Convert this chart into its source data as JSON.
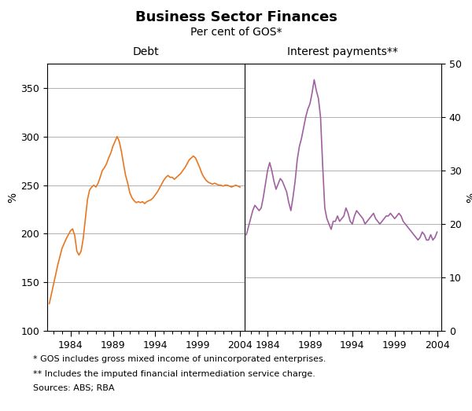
{
  "title": "Business Sector Finances",
  "subtitle": "Per cent of GOS*",
  "left_label": "Debt",
  "right_label": "Interest payments**",
  "ylabel_left": "%",
  "ylabel_right": "%",
  "footnote1": "* GOS includes gross mixed income of unincorporated enterprises.",
  "footnote2": "** Includes the imputed financial intermediation service charge.",
  "footnote3": "Sources: ABS; RBA",
  "debt_color": "#E87722",
  "interest_color": "#A060A0",
  "background_color": "#ffffff",
  "grid_color": "#b0b0b0",
  "left_ylim": [
    100,
    375
  ],
  "right_ylim": [
    0,
    50
  ],
  "left_yticks": [
    100,
    150,
    200,
    250,
    300,
    350
  ],
  "right_yticks": [
    0,
    10,
    20,
    30,
    40,
    50
  ],
  "xticks": [
    1984,
    1989,
    1994,
    1999,
    2004
  ],
  "xmin": 1981.25,
  "xmax": 2004.5,
  "debt_x": [
    1981.5,
    1982.0,
    1982.5,
    1983.0,
    1983.5,
    1984.0,
    1984.25,
    1984.5,
    1984.75,
    1985.0,
    1985.25,
    1985.5,
    1985.75,
    1986.0,
    1986.25,
    1986.5,
    1986.75,
    1987.0,
    1987.25,
    1987.5,
    1987.75,
    1988.0,
    1988.25,
    1988.5,
    1988.75,
    1989.0,
    1989.25,
    1989.5,
    1989.75,
    1990.0,
    1990.25,
    1990.5,
    1990.75,
    1991.0,
    1991.25,
    1991.5,
    1991.75,
    1992.0,
    1992.25,
    1992.5,
    1992.75,
    1993.0,
    1993.25,
    1993.5,
    1993.75,
    1994.0,
    1994.25,
    1994.5,
    1994.75,
    1995.0,
    1995.25,
    1995.5,
    1995.75,
    1996.0,
    1996.25,
    1996.5,
    1996.75,
    1997.0,
    1997.25,
    1997.5,
    1997.75,
    1998.0,
    1998.25,
    1998.5,
    1998.75,
    1999.0,
    1999.25,
    1999.5,
    1999.75,
    2000.0,
    2000.25,
    2000.5,
    2000.75,
    2001.0,
    2001.25,
    2001.5,
    2001.75,
    2002.0,
    2002.25,
    2002.5,
    2002.75,
    2003.0,
    2003.25,
    2003.5,
    2003.75,
    2004.0
  ],
  "debt_y": [
    128,
    148,
    168,
    185,
    195,
    203,
    205,
    198,
    182,
    178,
    182,
    195,
    215,
    235,
    245,
    248,
    250,
    248,
    252,
    258,
    265,
    268,
    272,
    278,
    283,
    290,
    295,
    300,
    295,
    285,
    272,
    260,
    252,
    242,
    237,
    234,
    232,
    233,
    232,
    233,
    231,
    233,
    234,
    235,
    237,
    240,
    243,
    247,
    251,
    255,
    258,
    260,
    258,
    258,
    256,
    258,
    260,
    262,
    265,
    268,
    272,
    276,
    278,
    280,
    278,
    273,
    268,
    262,
    258,
    255,
    253,
    252,
    251,
    252,
    251,
    250,
    250,
    249,
    250,
    250,
    249,
    248,
    249,
    250,
    249,
    248
  ],
  "interest_x": [
    1981.5,
    1981.75,
    1982.0,
    1982.25,
    1982.5,
    1982.75,
    1983.0,
    1983.25,
    1983.5,
    1983.75,
    1984.0,
    1984.25,
    1984.5,
    1984.75,
    1985.0,
    1985.25,
    1985.5,
    1985.75,
    1986.0,
    1986.25,
    1986.5,
    1986.75,
    1987.0,
    1987.25,
    1987.5,
    1987.75,
    1988.0,
    1988.25,
    1988.5,
    1988.75,
    1989.0,
    1989.25,
    1989.5,
    1989.75,
    1990.0,
    1990.25,
    1990.5,
    1990.75,
    1991.0,
    1991.25,
    1991.5,
    1991.75,
    1992.0,
    1992.25,
    1992.5,
    1992.75,
    1993.0,
    1993.25,
    1993.5,
    1993.75,
    1994.0,
    1994.25,
    1994.5,
    1994.75,
    1995.0,
    1995.25,
    1995.5,
    1995.75,
    1996.0,
    1996.25,
    1996.5,
    1996.75,
    1997.0,
    1997.25,
    1997.5,
    1997.75,
    1998.0,
    1998.25,
    1998.5,
    1998.75,
    1999.0,
    1999.25,
    1999.5,
    1999.75,
    2000.0,
    2000.25,
    2000.5,
    2000.75,
    2001.0,
    2001.25,
    2001.5,
    2001.75,
    2002.0,
    2002.25,
    2002.5,
    2002.75,
    2003.0,
    2003.25,
    2003.5,
    2003.75,
    2004.0
  ],
  "interest_y": [
    18.0,
    19.5,
    21.0,
    22.5,
    23.5,
    23.0,
    22.5,
    23.0,
    25.0,
    27.5,
    30.0,
    31.5,
    30.0,
    28.0,
    26.5,
    27.5,
    28.5,
    28.0,
    27.0,
    26.0,
    24.0,
    22.5,
    25.0,
    28.0,
    32.0,
    34.5,
    36.0,
    38.0,
    40.0,
    41.5,
    42.5,
    44.5,
    47.0,
    45.0,
    43.5,
    40.0,
    31.0,
    23.0,
    21.0,
    20.0,
    19.0,
    20.5,
    20.5,
    21.5,
    20.5,
    21.0,
    21.5,
    23.0,
    22.0,
    20.5,
    20.0,
    21.5,
    22.5,
    22.0,
    21.5,
    21.0,
    20.0,
    20.5,
    21.0,
    21.5,
    22.0,
    21.0,
    20.5,
    20.0,
    20.5,
    21.0,
    21.5,
    21.5,
    22.0,
    21.5,
    21.0,
    21.5,
    22.0,
    21.5,
    20.5,
    20.0,
    19.5,
    19.0,
    18.5,
    18.0,
    17.5,
    17.0,
    17.5,
    18.5,
    18.0,
    17.0,
    17.0,
    18.0,
    17.0,
    17.5,
    18.5
  ]
}
